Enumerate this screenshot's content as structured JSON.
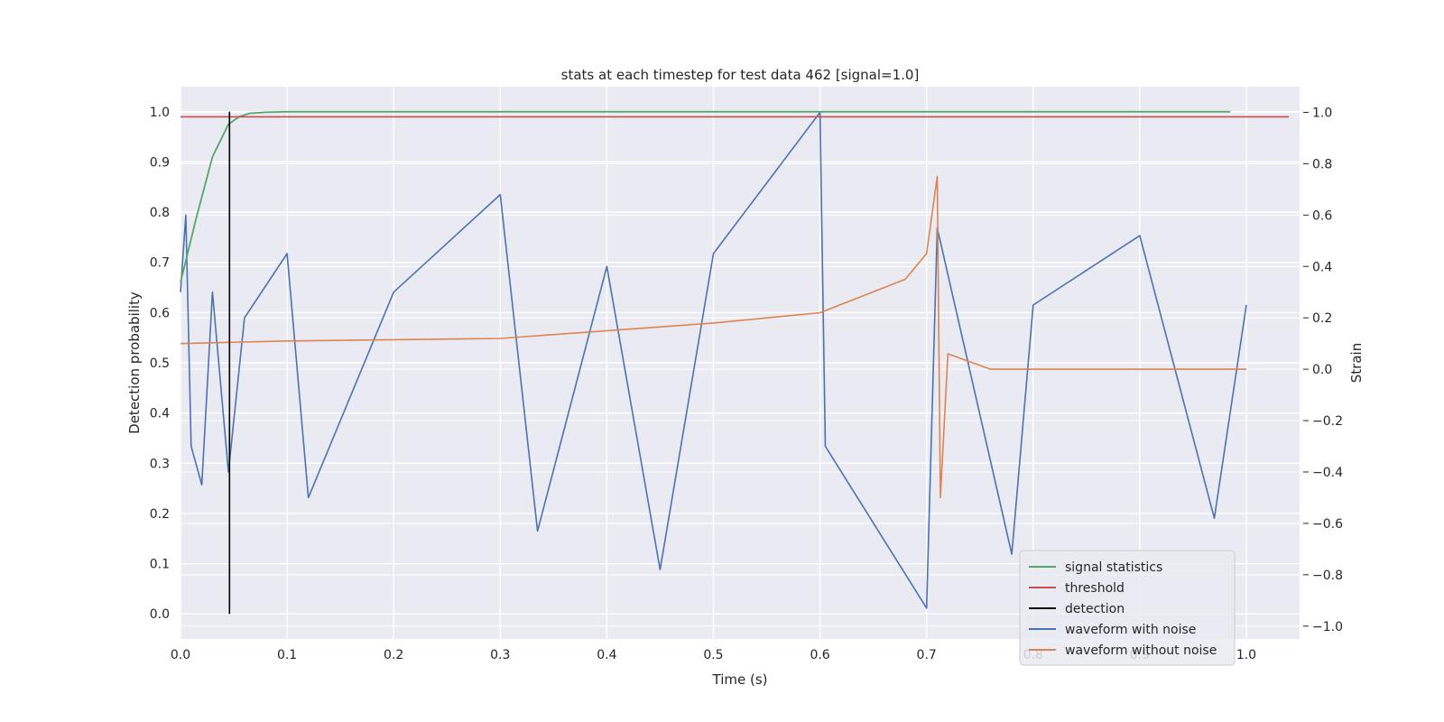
{
  "chart_data": {
    "type": "line",
    "title": "stats at each timestep for test data 462 [signal=1.0]",
    "xlabel": "Time (s)",
    "ylabel": "Detection probability",
    "y2label": "Strain",
    "xlim": [
      0.0,
      1.05
    ],
    "ylim": [
      -0.05,
      1.05
    ],
    "y2lim": [
      -1.05,
      1.1
    ],
    "xticks": [
      "0.0",
      "0.1",
      "0.2",
      "0.3",
      "0.4",
      "0.5",
      "0.6",
      "0.7",
      "0.8",
      "0.9",
      "1.0"
    ],
    "yticks": [
      "0.0",
      "0.1",
      "0.2",
      "0.3",
      "0.4",
      "0.5",
      "0.6",
      "0.7",
      "0.8",
      "0.9",
      "1.0"
    ],
    "y2ticks": [
      "−1.0",
      "−0.8",
      "−0.6",
      "−0.4",
      "−0.2",
      "0.0",
      "0.2",
      "0.4",
      "0.6",
      "0.8",
      "1.0"
    ],
    "grid": true,
    "legend_position": "lower-right",
    "series": [
      {
        "name": "signal statistics",
        "axis": "left",
        "color": "#55a868",
        "x": [
          0.0,
          0.015,
          0.03,
          0.045,
          0.055,
          0.065,
          0.08,
          0.1,
          0.2,
          0.4,
          0.6,
          0.8,
          0.985
        ],
        "y": [
          0.66,
          0.79,
          0.91,
          0.975,
          0.99,
          0.997,
          0.999,
          1.0,
          1.0,
          1.0,
          1.0,
          1.0,
          1.0
        ]
      },
      {
        "name": "threshold",
        "axis": "left",
        "color": "#c44e52",
        "x": [
          0.0,
          1.04
        ],
        "y": [
          0.99,
          0.99
        ]
      },
      {
        "name": "detection",
        "axis": "left",
        "color": "#000000",
        "x": [
          0.046,
          0.046
        ],
        "y": [
          0.0,
          1.0
        ]
      },
      {
        "name": "waveform with noise",
        "axis": "right",
        "color": "#4c72b0",
        "x": [
          0.0,
          0.005,
          0.01,
          0.02,
          0.03,
          0.045,
          0.06,
          0.1,
          0.12,
          0.2,
          0.3,
          0.335,
          0.4,
          0.45,
          0.5,
          0.6,
          0.605,
          0.7,
          0.71,
          0.78,
          0.8,
          0.9,
          0.97,
          1.0
        ],
        "y": [
          0.3,
          0.6,
          -0.3,
          -0.45,
          0.3,
          -0.4,
          0.2,
          0.45,
          -0.5,
          0.3,
          0.68,
          -0.63,
          0.4,
          -0.78,
          0.45,
          1.0,
          -0.3,
          -0.93,
          0.55,
          -0.72,
          0.25,
          0.52,
          -0.58,
          0.25
        ]
      },
      {
        "name": "waveform without noise",
        "axis": "right",
        "color": "#dd8452",
        "x": [
          0.0,
          0.1,
          0.3,
          0.5,
          0.6,
          0.68,
          0.7,
          0.71,
          0.713,
          0.72,
          0.76,
          1.0
        ],
        "y": [
          0.1,
          0.11,
          0.12,
          0.18,
          0.22,
          0.35,
          0.45,
          0.75,
          -0.5,
          0.06,
          0.0,
          0.0
        ]
      }
    ]
  }
}
